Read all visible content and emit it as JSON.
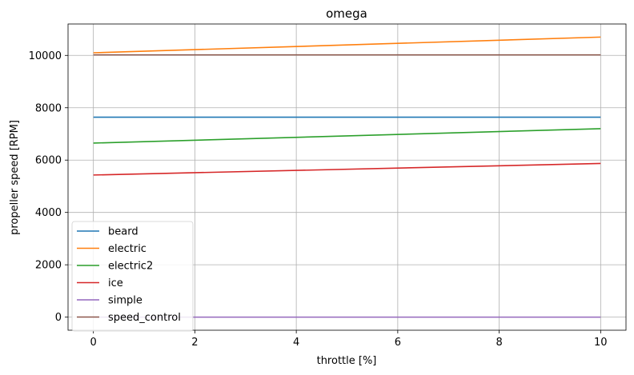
{
  "chart_data": {
    "type": "line",
    "title": "omega",
    "xlabel": "throttle [%]",
    "ylabel": "propeller speed [RPM]",
    "xlim": [
      -0.5,
      10.5
    ],
    "ylim": [
      -500,
      11200
    ],
    "xticks": [
      0,
      2,
      4,
      6,
      8,
      10
    ],
    "yticks": [
      0,
      2000,
      4000,
      6000,
      8000,
      10000
    ],
    "grid": true,
    "legend_position": "lower-left",
    "x": [
      0,
      10
    ],
    "series": [
      {
        "name": "beard",
        "color": "#1f77b4",
        "values": [
          7640,
          7640
        ]
      },
      {
        "name": "electric",
        "color": "#ff7f0e",
        "values": [
          10100,
          10700
        ]
      },
      {
        "name": "electric2",
        "color": "#2ca02c",
        "values": [
          6650,
          7200
        ]
      },
      {
        "name": "ice",
        "color": "#d62728",
        "values": [
          5430,
          5870
        ]
      },
      {
        "name": "simple",
        "color": "#9467bd",
        "values": [
          0,
          0
        ]
      },
      {
        "name": "speed_control",
        "color": "#8c564b",
        "values": [
          10020,
          10020
        ]
      }
    ]
  }
}
